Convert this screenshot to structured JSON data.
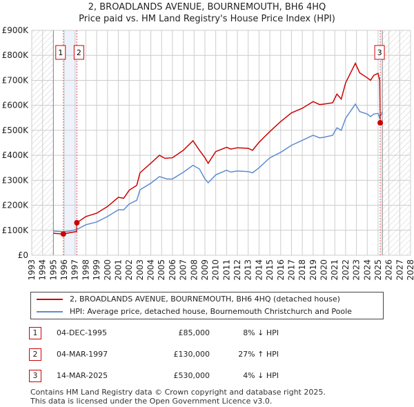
{
  "title_line1": "2, BROADLANDS AVENUE, BOURNEMOUTH, BH6 4HQ",
  "title_line2": "Price paid vs. HM Land Registry's House Price Index (HPI)",
  "chart_data": {
    "type": "line",
    "title": "2, BROADLANDS AVENUE, BOURNEMOUTH, BH6 4HQ — Price paid vs. HM Land Registry's House Price Index (HPI)",
    "xlim": [
      1993,
      2028
    ],
    "ylim": [
      0,
      900000
    ],
    "x_ticks": [
      "1993",
      "1994",
      "1995",
      "1996",
      "1997",
      "1998",
      "1999",
      "2000",
      "2001",
      "2002",
      "2003",
      "2004",
      "2005",
      "2006",
      "2007",
      "2008",
      "2009",
      "2010",
      "2011",
      "2012",
      "2013",
      "2014",
      "2015",
      "2016",
      "2017",
      "2018",
      "2019",
      "2020",
      "2021",
      "2022",
      "2023",
      "2024",
      "2025",
      "2026",
      "2027",
      "2028"
    ],
    "y_ticks": [
      {
        "v": 0,
        "label": "£0"
      },
      {
        "v": 100000,
        "label": "£100K"
      },
      {
        "v": 200000,
        "label": "£200K"
      },
      {
        "v": 300000,
        "label": "£300K"
      },
      {
        "v": 400000,
        "label": "£400K"
      },
      {
        "v": 500000,
        "label": "£500K"
      },
      {
        "v": 600000,
        "label": "£600K"
      },
      {
        "v": 700000,
        "label": "£700K"
      },
      {
        "v": 800000,
        "label": "£800K"
      },
      {
        "v": 900000,
        "label": "£900K"
      }
    ],
    "grid": true,
    "hatched_before": 1995,
    "hatched_after": 2025.4,
    "series": [
      {
        "name": "2, BROADLANDS AVENUE, BOURNEMOUTH, BH6 4HQ (detached house)",
        "color": "#cc0000",
        "x": [
          1995,
          1995.92,
          1996.5,
          1997.15,
          1997.17,
          1998,
          1999,
          2000,
          2001,
          2001.5,
          2002,
          2002.7,
          2003,
          2004,
          2004.8,
          2005.3,
          2006,
          2007,
          2007.9,
          2008.5,
          2009,
          2009.3,
          2010,
          2011,
          2011.4,
          2012,
          2013,
          2013.4,
          2014,
          2015,
          2016,
          2017,
          2018,
          2019,
          2019.6,
          2020,
          2020.8,
          2021.2,
          2021.6,
          2022,
          2022.9,
          2023.3,
          2024,
          2024.3,
          2024.6,
          2025.0,
          2025.15,
          2025.2
        ],
        "y": [
          88000,
          85000,
          90000,
          95000,
          130000,
          155000,
          168000,
          195000,
          232000,
          228000,
          260000,
          280000,
          330000,
          368000,
          400000,
          388000,
          390000,
          420000,
          458000,
          420000,
          390000,
          368000,
          415000,
          432000,
          425000,
          430000,
          428000,
          420000,
          452000,
          495000,
          535000,
          570000,
          588000,
          615000,
          603000,
          605000,
          610000,
          645000,
          625000,
          690000,
          768000,
          730000,
          710000,
          700000,
          720000,
          728000,
          700000,
          530000
        ]
      },
      {
        "name": "HPI: Average price, detached house, Bournemouth Christchurch and Poole",
        "color": "#5b8bd0",
        "x": [
          1995,
          1995.92,
          1996.5,
          1997.17,
          1998,
          1999,
          2000,
          2001,
          2001.5,
          2002,
          2002.7,
          2003,
          2004,
          2004.8,
          2005.5,
          2006,
          2007,
          2007.9,
          2008.5,
          2009,
          2009.3,
          2010,
          2011,
          2011.4,
          2012,
          2013,
          2013.4,
          2014,
          2015,
          2016,
          2017,
          2018,
          2019,
          2019.6,
          2020,
          2020.8,
          2021.2,
          2021.6,
          2022,
          2022.9,
          2023.3,
          2024,
          2024.3,
          2024.6,
          2025.0,
          2025.15,
          2025.4
        ],
        "y": [
          97000,
          94000,
          97000,
          103000,
          122000,
          133000,
          155000,
          182000,
          182000,
          205000,
          220000,
          262000,
          288000,
          315000,
          305000,
          305000,
          332000,
          360000,
          345000,
          305000,
          290000,
          322000,
          340000,
          333000,
          337000,
          335000,
          330000,
          350000,
          390000,
          412000,
          440000,
          460000,
          480000,
          470000,
          472000,
          480000,
          510000,
          500000,
          548000,
          605000,
          575000,
          565000,
          555000,
          565000,
          568000,
          550000,
          575000
        ]
      }
    ],
    "sales": [
      {
        "label": "1",
        "x": 1995.92,
        "y": 85000,
        "date": "04-DEC-1995",
        "price": "£85,000",
        "hpi": "8% ↓ HPI"
      },
      {
        "label": "2",
        "x": 1997.17,
        "y": 130000,
        "date": "04-MAR-1997",
        "price": "£130,000",
        "hpi": "27% ↑ HPI"
      },
      {
        "label": "3",
        "x": 2025.2,
        "y": 530000,
        "date": "14-MAR-2025",
        "price": "£530,000",
        "hpi": "4% ↓ HPI"
      }
    ]
  },
  "legend": {
    "red": "2, BROADLANDS AVENUE, BOURNEMOUTH, BH6 4HQ (detached house)",
    "blue": "HPI: Average price, detached house, Bournemouth Christchurch and Poole"
  },
  "footer_line1": "Contains HM Land Registry data © Crown copyright and database right 2025.",
  "footer_line2": "This data is licensed under the Open Government Licence v3.0."
}
